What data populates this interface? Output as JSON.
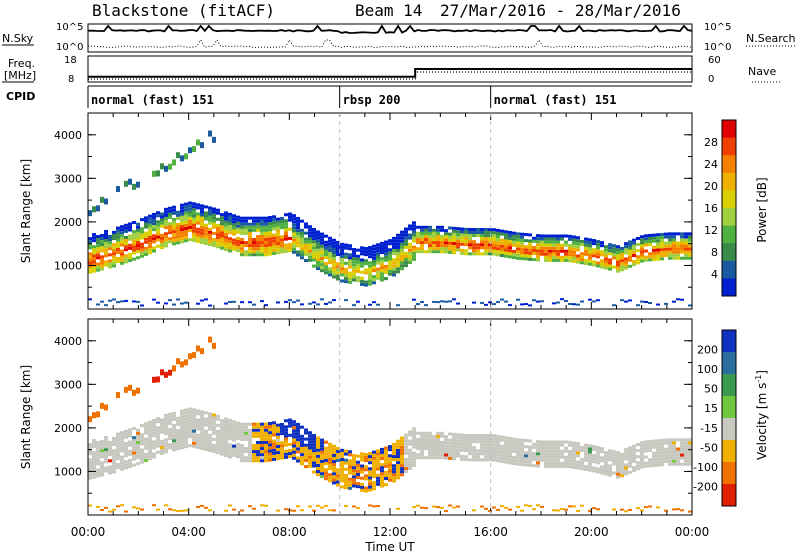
{
  "header": {
    "station": "Blackstone (fitACF)",
    "beam": "Beam 14",
    "dates": "27/Mar/2016 - 28/Mar/2016"
  },
  "top_panel": {
    "left_label": "N.Sky",
    "left_ticks": [
      "10^5",
      "10^0"
    ],
    "right_label": "N.Search",
    "right_ticks": [
      "10^5",
      "10^0"
    ]
  },
  "freq_panel": {
    "left_label_1": "Freq.",
    "left_label_2": "[MHz]",
    "left_ticks": [
      "18",
      "8"
    ],
    "right_label": "Nave",
    "right_ticks": [
      "60",
      "0"
    ]
  },
  "cpid_panel": {
    "label": "CPID",
    "modes": [
      {
        "name": "normal (fast) 151",
        "start_hour": 0,
        "end_hour": 10
      },
      {
        "name": "rbsp 200",
        "start_hour": 10,
        "end_hour": 16
      },
      {
        "name": "normal (fast) 151",
        "start_hour": 16,
        "end_hour": 24
      }
    ]
  },
  "power_colorbar": {
    "label": "Power [dB]",
    "ticks": [
      "28",
      "24",
      "20",
      "16",
      "12",
      "8",
      "4"
    ],
    "colors": [
      "#e00000",
      "#f04000",
      "#f58000",
      "#f0b000",
      "#d8d000",
      "#a0d040",
      "#50b040",
      "#3a8a4a",
      "#1a5aa0",
      "#0020d0"
    ]
  },
  "velocity_colorbar": {
    "label": "Velocity [m s",
    "label_exp": "-1",
    "label_close": "]",
    "ticks": [
      "200",
      "100",
      "50",
      "15",
      "-15",
      "-50",
      "-100",
      "-200"
    ],
    "colors": [
      "#1030c0",
      "#2a6e9e",
      "#3a9a50",
      "#70c840",
      "#c8c8c0",
      "#f0b000",
      "#f07000",
      "#e02000"
    ]
  },
  "chart_data": [
    {
      "type": "heatmap",
      "name": "power",
      "ylabel": "Slant Range [km]",
      "ylim": [
        0,
        4500
      ],
      "yticks": [
        "4000",
        "3000",
        "2000",
        "1000"
      ],
      "xlim": [
        0,
        24
      ],
      "xlabel": "",
      "colorbar": "Power [dB]",
      "range_band_center_km": [
        [
          0,
          1300
        ],
        [
          1,
          1450
        ],
        [
          2,
          1650
        ],
        [
          3,
          1900
        ],
        [
          4,
          2050
        ],
        [
          5,
          1900
        ],
        [
          6,
          1700
        ],
        [
          7,
          1700
        ],
        [
          8,
          1800
        ],
        [
          9,
          1400
        ],
        [
          10,
          1100
        ],
        [
          11,
          1000
        ],
        [
          12,
          1200
        ],
        [
          13,
          1650
        ],
        [
          14,
          1650
        ],
        [
          15,
          1600
        ],
        [
          16,
          1600
        ],
        [
          17,
          1500
        ],
        [
          18,
          1450
        ],
        [
          19,
          1450
        ],
        [
          20,
          1350
        ],
        [
          21,
          1200
        ],
        [
          22,
          1450
        ],
        [
          23,
          1500
        ],
        [
          24,
          1500
        ]
      ]
    },
    {
      "type": "heatmap",
      "name": "velocity",
      "ylabel": "Slant Range [km]",
      "ylim": [
        0,
        4500
      ],
      "yticks": [
        "4000",
        "3000",
        "2000",
        "1000"
      ],
      "xlim": [
        0,
        24
      ],
      "xlabel": "Time UT",
      "xticks": [
        "00:00",
        "04:00",
        "08:00",
        "12:00",
        "16:00",
        "20:00",
        "00:00"
      ],
      "colorbar": "Velocity [m s-1]"
    },
    {
      "type": "line",
      "name": "frequency",
      "ylim": [
        8,
        18
      ],
      "x": [
        0,
        13,
        13,
        24
      ],
      "values": [
        10,
        10,
        13,
        13
      ]
    }
  ]
}
